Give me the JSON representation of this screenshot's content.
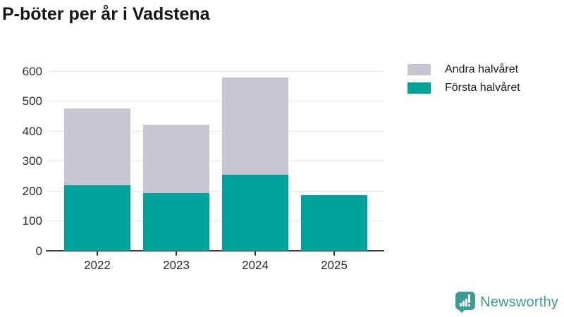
{
  "title": "P-böter per år i Vadstena",
  "legend": [
    {
      "label": "Andra halvåret",
      "color": "#c8c6d2"
    },
    {
      "label": "Första halvåret",
      "color": "#00a39b"
    }
  ],
  "chart_data": {
    "type": "bar",
    "stacked": true,
    "title": "P-böter per år i Vadstena",
    "categories": [
      "2022",
      "2023",
      "2024",
      "2025"
    ],
    "series": [
      {
        "name": "Första halvåret",
        "color": "#00a39b",
        "values": [
          220,
          193,
          254,
          187
        ]
      },
      {
        "name": "Andra halvåret",
        "color": "#c8c6d2",
        "values": [
          255,
          229,
          324,
          0
        ]
      }
    ],
    "totals": [
      475,
      422,
      578,
      187
    ],
    "xlabel": "",
    "ylabel": "",
    "ylim": [
      0,
      600
    ],
    "yticks": [
      0,
      100,
      200,
      300,
      400,
      500,
      600
    ],
    "grid": true,
    "legend_position": "top-right"
  },
  "branding": {
    "logo_text": "Newsworthy",
    "logo_color": "#3e9b95",
    "icon": "bar-chart-speech-bubble-icon"
  },
  "colors": {
    "axis": "#3c3c3c",
    "gridline": "#e6e6e6",
    "tick_label": "#2d2d2d",
    "title": "#161616"
  }
}
